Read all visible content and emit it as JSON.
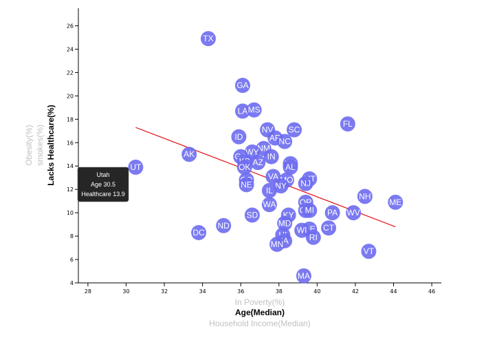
{
  "chart_data": {
    "type": "scatter",
    "x_axis": {
      "range": [
        27.5,
        46.5
      ],
      "ticks": [
        28,
        30,
        32,
        34,
        36,
        38,
        40,
        42,
        44,
        46
      ],
      "labels": [
        {
          "text": "In Poverty(%)",
          "active": false
        },
        {
          "text": "Age(Median)",
          "active": true
        },
        {
          "text": "Household Income(Median)",
          "active": false
        }
      ]
    },
    "y_axis": {
      "range": [
        4,
        27.5
      ],
      "ticks": [
        4,
        6,
        8,
        10,
        12,
        14,
        16,
        18,
        20,
        22,
        24,
        26
      ],
      "labels": [
        {
          "text": "Lacks Healthcare(%)",
          "active": true
        },
        {
          "text": "smokes(%)",
          "active": false
        },
        {
          "text": "Obesity(%)",
          "active": false
        }
      ]
    },
    "points": [
      {
        "abbr": "TX",
        "x": 34.3,
        "y": 24.9
      },
      {
        "abbr": "GA",
        "x": 36.1,
        "y": 20.9
      },
      {
        "abbr": "LA",
        "x": 36.1,
        "y": 18.7
      },
      {
        "abbr": "MS",
        "x": 36.7,
        "y": 18.8
      },
      {
        "abbr": "FL",
        "x": 41.6,
        "y": 17.6
      },
      {
        "abbr": "NV",
        "x": 37.4,
        "y": 17.1
      },
      {
        "abbr": "SC",
        "x": 38.8,
        "y": 17.1
      },
      {
        "abbr": "ID",
        "x": 35.9,
        "y": 16.5
      },
      {
        "abbr": "AR",
        "x": 37.8,
        "y": 16.4
      },
      {
        "abbr": "NC",
        "x": 38.3,
        "y": 16.1
      },
      {
        "abbr": "NM",
        "x": 37.2,
        "y": 15.5
      },
      {
        "abbr": "AK",
        "x": 33.3,
        "y": 15.0
      },
      {
        "abbr": "WY",
        "x": 36.6,
        "y": 15.2
      },
      {
        "abbr": "GA",
        "x": 36.0,
        "y": 14.8
      },
      {
        "abbr": "IN",
        "x": 37.6,
        "y": 14.8
      },
      {
        "abbr": "KS",
        "x": 36.2,
        "y": 14.4
      },
      {
        "abbr": "AZ",
        "x": 36.9,
        "y": 14.3
      },
      {
        "abbr": "OK",
        "x": 36.2,
        "y": 13.9
      },
      {
        "abbr": "TN",
        "x": 38.6,
        "y": 14.2
      },
      {
        "abbr": "AL",
        "x": 38.6,
        "y": 13.9
      },
      {
        "abbr": "UT",
        "x": 30.5,
        "y": 13.9
      },
      {
        "abbr": "VA",
        "x": 37.7,
        "y": 13.1
      },
      {
        "abbr": "MT",
        "x": 39.6,
        "y": 12.9
      },
      {
        "abbr": "CO",
        "x": 36.3,
        "y": 12.8
      },
      {
        "abbr": "MO",
        "x": 38.4,
        "y": 12.8
      },
      {
        "abbr": "NJ",
        "x": 39.4,
        "y": 12.5
      },
      {
        "abbr": "NE",
        "x": 36.3,
        "y": 12.4
      },
      {
        "abbr": "NY",
        "x": 38.1,
        "y": 12.3
      },
      {
        "abbr": "IL",
        "x": 37.5,
        "y": 11.9
      },
      {
        "abbr": "NH",
        "x": 42.5,
        "y": 11.4
      },
      {
        "abbr": "ME",
        "x": 44.1,
        "y": 10.9
      },
      {
        "abbr": "OR",
        "x": 39.4,
        "y": 10.9
      },
      {
        "abbr": "WA",
        "x": 37.5,
        "y": 10.7
      },
      {
        "abbr": "OH",
        "x": 39.4,
        "y": 10.2
      },
      {
        "abbr": "MI",
        "x": 39.6,
        "y": 10.2
      },
      {
        "abbr": "PA",
        "x": 40.8,
        "y": 10.0
      },
      {
        "abbr": "WV",
        "x": 41.9,
        "y": 10.0
      },
      {
        "abbr": "KY",
        "x": 38.5,
        "y": 9.8
      },
      {
        "abbr": "SD",
        "x": 36.6,
        "y": 9.8
      },
      {
        "abbr": "ND",
        "x": 35.1,
        "y": 8.9
      },
      {
        "abbr": "MD",
        "x": 38.3,
        "y": 9.1
      },
      {
        "abbr": "DE",
        "x": 39.6,
        "y": 8.6
      },
      {
        "abbr": "CT",
        "x": 40.6,
        "y": 8.7
      },
      {
        "abbr": "WI",
        "x": 39.2,
        "y": 8.5
      },
      {
        "abbr": "DC",
        "x": 33.8,
        "y": 8.3
      },
      {
        "abbr": "HI",
        "x": 38.2,
        "y": 8.1
      },
      {
        "abbr": "RI",
        "x": 39.8,
        "y": 7.9
      },
      {
        "abbr": "IA",
        "x": 38.3,
        "y": 7.6
      },
      {
        "abbr": "MN",
        "x": 37.9,
        "y": 7.3
      },
      {
        "abbr": "VT",
        "x": 42.7,
        "y": 6.7
      },
      {
        "abbr": "MA",
        "x": 39.3,
        "y": 4.6
      }
    ],
    "trendline": {
      "x": [
        30.5,
        44.1
      ],
      "y": [
        17.3,
        8.8
      ]
    },
    "tooltip": {
      "title": "Utah",
      "line1": "Age 30.5",
      "line2": "Healthcare 13.9"
    },
    "grid": false
  }
}
